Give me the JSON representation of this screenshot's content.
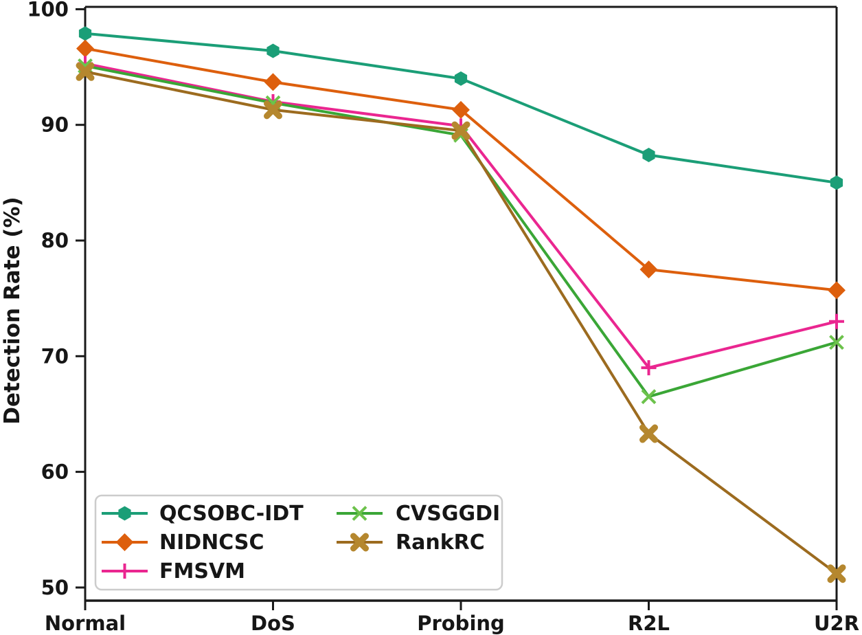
{
  "chart_data": {
    "type": "line",
    "title": "",
    "xlabel": "",
    "ylabel": "Detection Rate (%)",
    "categories": [
      "Normal",
      "DoS",
      "Probing",
      "R2L",
      "U2R"
    ],
    "yticks": [
      "50",
      "60",
      "70",
      "80",
      "90",
      "100"
    ],
    "ylim": [
      48.8,
      100.2
    ],
    "grid": false,
    "legend_position": "lower-left",
    "legend_columns": 2,
    "axis_color": "#1a1a1a",
    "legend_border_color": "#cccccc",
    "series": [
      {
        "name": "QCSOBC-IDT",
        "color": "#1b9e77",
        "marker": "hexagon",
        "values": [
          97.9,
          96.4,
          94.0,
          87.4,
          85.0
        ]
      },
      {
        "name": "NIDNCSC",
        "color": "#dd5f0d",
        "marker": "diamond",
        "values": [
          96.6,
          93.7,
          91.3,
          77.5,
          75.7
        ]
      },
      {
        "name": "FMSVM",
        "color": "#ea2690",
        "marker": "plus",
        "values": [
          95.3,
          92.0,
          89.9,
          69.0,
          73.0
        ]
      },
      {
        "name": "CVSGGDI",
        "color": "#3aa636",
        "marker_color": "#6cc24b",
        "marker": "x",
        "values": [
          95.1,
          91.9,
          89.1,
          66.5,
          71.2
        ]
      },
      {
        "name": "RankRC",
        "color": "#9c6b1f",
        "marker_color": "#b5872e",
        "marker": "x-bold",
        "values": [
          94.6,
          91.3,
          89.5,
          63.3,
          51.2
        ]
      }
    ]
  }
}
